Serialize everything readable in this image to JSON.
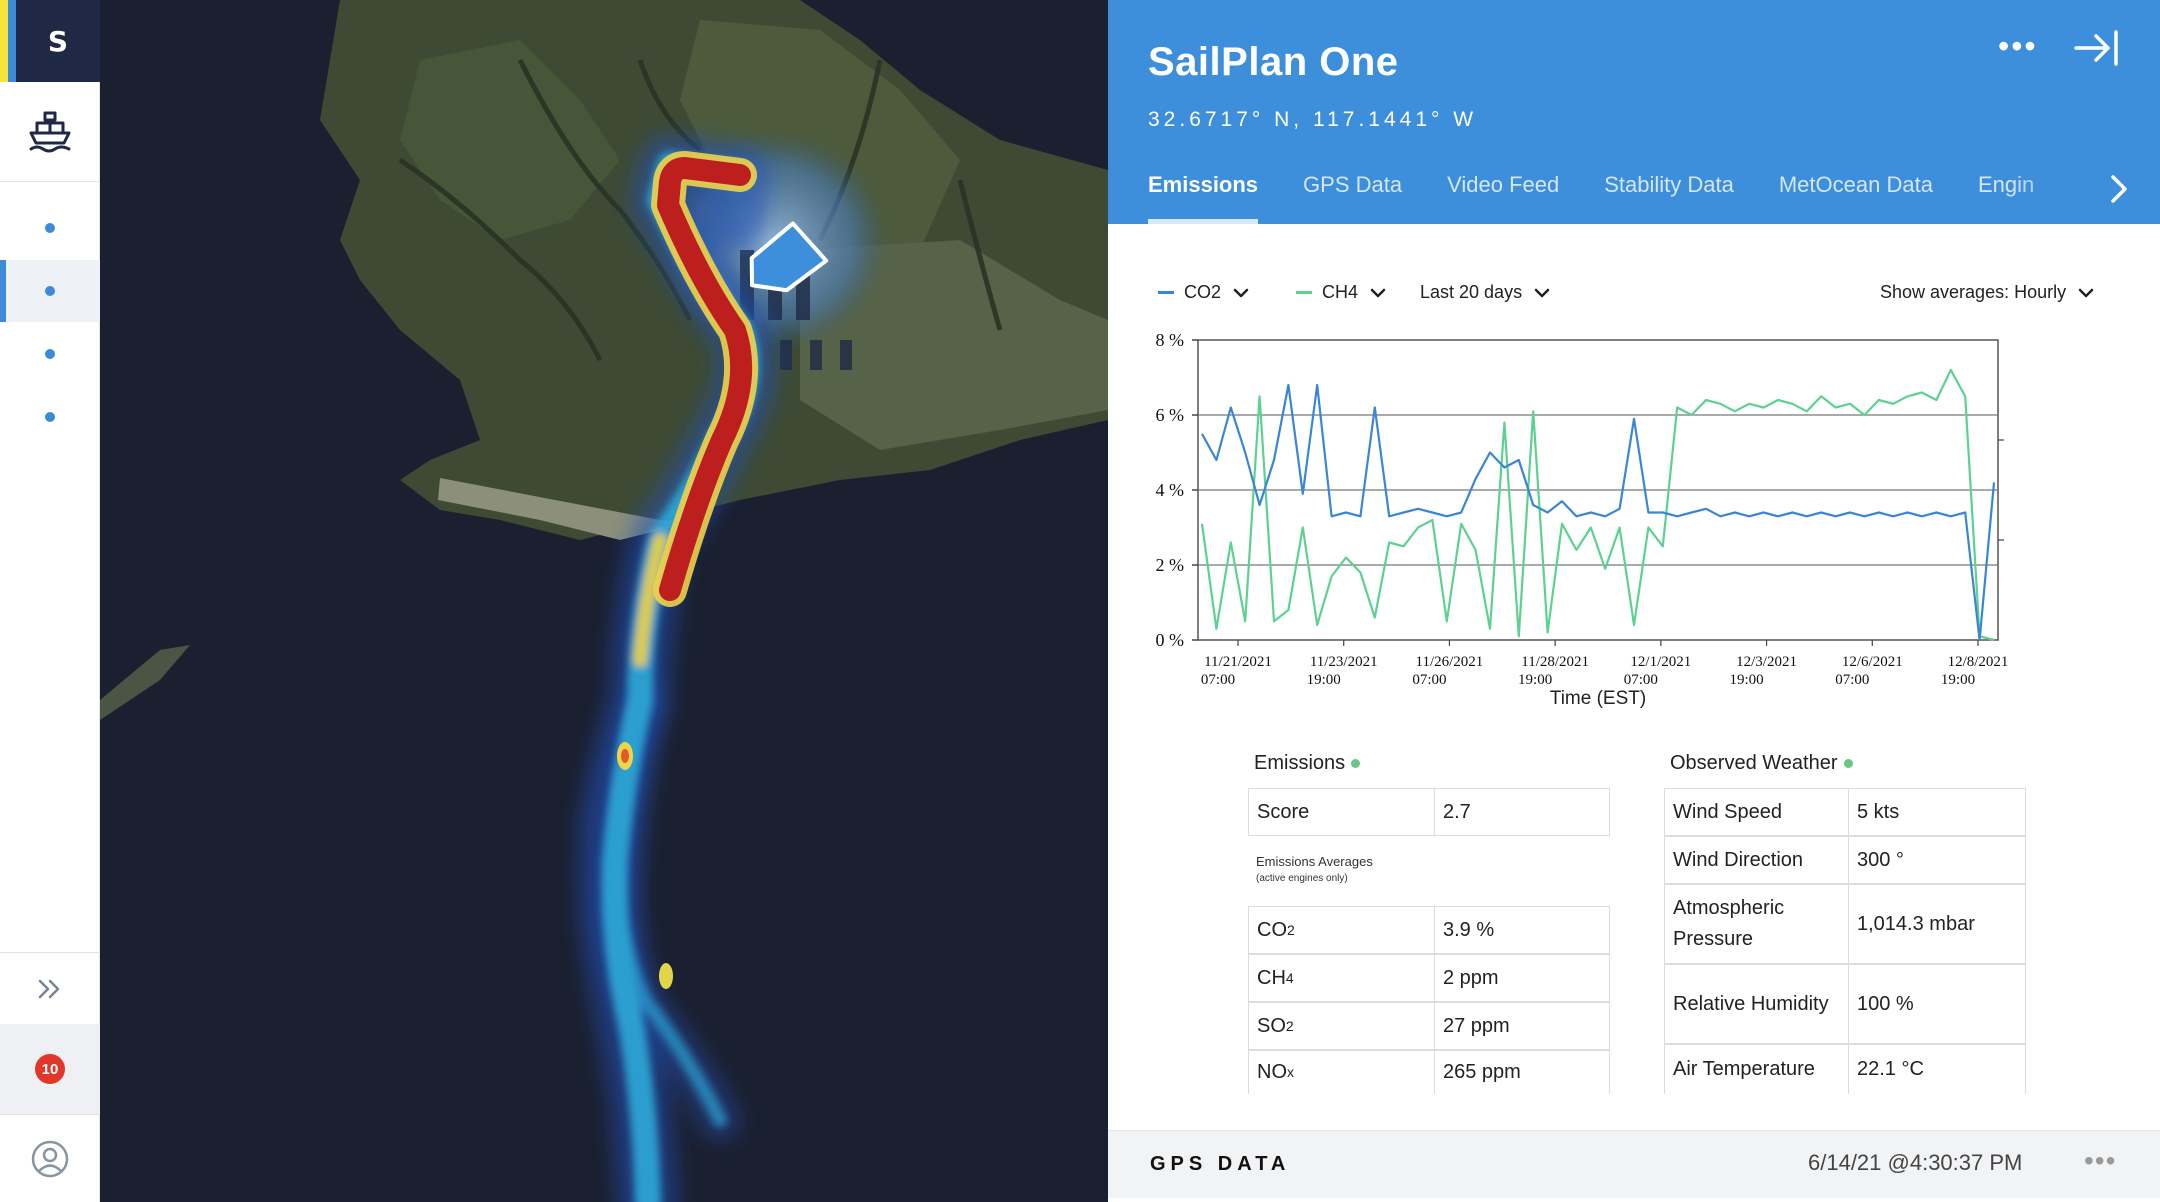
{
  "app": {
    "logo": "S"
  },
  "rail": {
    "alert_count": "10"
  },
  "vessel": {
    "name": "SailPlan One",
    "coords": "32.6717° N, 117.1441° W"
  },
  "header": {
    "menu_glyph": "•••"
  },
  "tabs": [
    {
      "label": "Emissions"
    },
    {
      "label": "GPS Data"
    },
    {
      "label": "Video Feed"
    },
    {
      "label": "Stability Data"
    },
    {
      "label": "MetOcean Data"
    },
    {
      "label": "Engin"
    }
  ],
  "controls": {
    "series1": "CO2",
    "series2": "CH4",
    "range": "Last 20 days",
    "averages": "Show averages: Hourly"
  },
  "colors": {
    "co2": "#3a86d4",
    "ch4": "#5dd18f",
    "header": "#3d8fdc",
    "alert": "#e2362b"
  },
  "chart_data": {
    "type": "line",
    "xlabel": "Time (EST)",
    "ylabel": "",
    "y_ticks": [
      "8 %",
      "6 %",
      "4 %",
      "2 %",
      "0 %"
    ],
    "ylim": [
      0,
      8
    ],
    "x_tick_labels": [
      [
        "11/21/2021",
        "07:00"
      ],
      [
        "11/23/2021",
        "19:00"
      ],
      [
        "11/26/2021",
        "07:00"
      ],
      [
        "11/28/2021",
        "19:00"
      ],
      [
        "12/1/2021",
        "07:00"
      ],
      [
        "12/3/2021",
        "19:00"
      ],
      [
        "12/6/2021",
        "07:00"
      ],
      [
        "12/8/2021",
        "19:00"
      ]
    ],
    "series": [
      {
        "name": "CO2",
        "color": "#3a86d4",
        "values": [
          5.5,
          4.8,
          6.2,
          5.0,
          3.6,
          4.8,
          6.8,
          3.9,
          6.8,
          3.3,
          3.4,
          3.3,
          6.2,
          3.3,
          3.4,
          3.5,
          3.4,
          3.3,
          3.4,
          4.3,
          5.0,
          4.6,
          4.8,
          3.6,
          3.4,
          3.7,
          3.3,
          3.4,
          3.3,
          3.5,
          5.9,
          3.4,
          3.4,
          3.3,
          3.4,
          3.5,
          3.3,
          3.4,
          3.3,
          3.4,
          3.3,
          3.4,
          3.3,
          3.4,
          3.3,
          3.4,
          3.3,
          3.4,
          3.3,
          3.4,
          3.3,
          3.4,
          3.3,
          3.4,
          0.0,
          4.2
        ]
      },
      {
        "name": "CH4",
        "color": "#5dd18f",
        "values": [
          3.1,
          0.3,
          2.6,
          0.5,
          6.5,
          0.5,
          0.8,
          3.0,
          0.4,
          1.7,
          2.2,
          1.8,
          0.6,
          2.6,
          2.5,
          3.0,
          3.2,
          0.5,
          3.1,
          2.4,
          0.3,
          5.8,
          0.1,
          6.1,
          0.2,
          3.1,
          2.4,
          3.0,
          1.9,
          3.0,
          0.4,
          3.0,
          2.5,
          6.2,
          6.0,
          6.4,
          6.3,
          6.1,
          6.3,
          6.2,
          6.4,
          6.3,
          6.1,
          6.5,
          6.2,
          6.3,
          6.0,
          6.4,
          6.3,
          6.5,
          6.6,
          6.4,
          7.2,
          6.5,
          0.1,
          0.0
        ]
      }
    ]
  },
  "emissions": {
    "title": "Emissions",
    "score_label": "Score",
    "score_value": "2.7",
    "avg_title": "Emissions Averages",
    "avg_sub": "(active engines only)",
    "rows": [
      {
        "base": "CO",
        "sub": "2",
        "value": "3.9 %"
      },
      {
        "base": "CH",
        "sub": "4",
        "value": "2 ppm"
      },
      {
        "base": "SO",
        "sub": "2",
        "value": "27 ppm"
      },
      {
        "base": "NO",
        "sub": "x",
        "value": "265 ppm"
      }
    ]
  },
  "weather": {
    "title": "Observed Weather",
    "rows": [
      {
        "label": "Wind Speed",
        "value": "5 kts"
      },
      {
        "label": "Wind Direction",
        "value": "300 °"
      },
      {
        "label": "Atmospheric Pressure",
        "value": "1,014.3 mbar"
      },
      {
        "label": "Relative Humidity",
        "value": "100 %"
      },
      {
        "label": "Air Temperature",
        "value": "22.1 °C"
      }
    ]
  },
  "bottom": {
    "title": "GPS DATA",
    "timestamp": "6/14/21 @4:30:37 PM",
    "menu_glyph": "•••"
  }
}
